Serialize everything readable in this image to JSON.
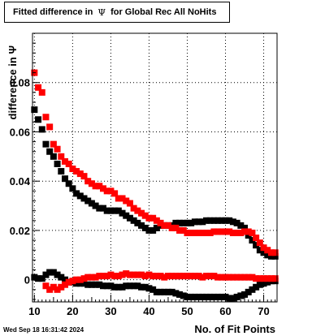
{
  "title": {
    "prefix": "Fitted difference in",
    "symbol": "Ψ",
    "suffix": "for Global Rec All NoHits"
  },
  "timestamp": "Wed Sep 18 16:31:42 2024",
  "chart_data": {
    "type": "scatter",
    "xlabel": "No. of Fit Points",
    "ylabel": "difference in  Ψ",
    "xlim": [
      9.5,
      73.5
    ],
    "ylim": [
      -0.009,
      0.1
    ],
    "xticks": [
      10,
      20,
      30,
      40,
      50,
      60,
      70
    ],
    "yticks": [
      0,
      0.02,
      0.04,
      0.06,
      0.08
    ],
    "ytick_labels": [
      "0",
      "0.02",
      "0.04",
      "0.06",
      "0.08"
    ],
    "grid": true,
    "colors": {
      "black": "#000000",
      "red": "#ff0000"
    },
    "series": [
      {
        "color": "#000000",
        "x": [
          10,
          11,
          12,
          13,
          14,
          15,
          16,
          17,
          18,
          19,
          20,
          21,
          22,
          23,
          24,
          25,
          26,
          27,
          28,
          29,
          30,
          31,
          32,
          33,
          34,
          35,
          36,
          37,
          38,
          39,
          40,
          41,
          42,
          43,
          44,
          45,
          46,
          47,
          48,
          49,
          50,
          51,
          52,
          53,
          54,
          55,
          56,
          57,
          58,
          59,
          60,
          61,
          62,
          63,
          64,
          65,
          66,
          67,
          68,
          69,
          70,
          71,
          72,
          73
        ],
        "y": [
          0.069,
          0.065,
          0.061,
          0.055,
          0.052,
          0.05,
          0.047,
          0.044,
          0.041,
          0.039,
          0.037,
          0.035,
          0.034,
          0.033,
          0.032,
          0.031,
          0.03,
          0.029,
          0.029,
          0.028,
          0.028,
          0.028,
          0.028,
          0.027,
          0.026,
          0.025,
          0.024,
          0.023,
          0.022,
          0.021,
          0.02,
          0.02,
          0.021,
          0.022,
          0.022,
          0.022,
          0.022,
          0.023,
          0.023,
          0.023,
          0.023,
          0.023,
          0.0235,
          0.0235,
          0.0235,
          0.024,
          0.024,
          0.024,
          0.024,
          0.024,
          0.024,
          0.024,
          0.0235,
          0.023,
          0.022,
          0.021,
          0.018,
          0.016,
          0.014,
          0.012,
          0.011,
          0.01,
          0.0095,
          0.0095
        ]
      },
      {
        "color": "#ff0000",
        "x": [
          10,
          11,
          12,
          13,
          14,
          15,
          16,
          17,
          18,
          19,
          20,
          21,
          22,
          23,
          24,
          25,
          26,
          27,
          28,
          29,
          30,
          31,
          32,
          33,
          34,
          35,
          36,
          37,
          38,
          39,
          40,
          41,
          42,
          43,
          44,
          45,
          46,
          47,
          48,
          49,
          50,
          51,
          52,
          53,
          54,
          55,
          56,
          57,
          58,
          59,
          60,
          61,
          62,
          63,
          64,
          65,
          66,
          67,
          68,
          69,
          70,
          71,
          72,
          73
        ],
        "y": [
          0.084,
          0.078,
          0.076,
          0.066,
          0.062,
          0.055,
          0.053,
          0.05,
          0.048,
          0.047,
          0.045,
          0.044,
          0.043,
          0.042,
          0.04,
          0.039,
          0.038,
          0.038,
          0.037,
          0.036,
          0.036,
          0.035,
          0.033,
          0.033,
          0.032,
          0.031,
          0.029,
          0.028,
          0.027,
          0.026,
          0.025,
          0.025,
          0.024,
          0.023,
          0.022,
          0.022,
          0.021,
          0.021,
          0.02,
          0.02,
          0.019,
          0.019,
          0.019,
          0.019,
          0.019,
          0.019,
          0.019,
          0.0195,
          0.0195,
          0.0195,
          0.0195,
          0.0195,
          0.019,
          0.019,
          0.019,
          0.0195,
          0.0195,
          0.019,
          0.017,
          0.015,
          0.013,
          0.012,
          0.011,
          0.011
        ]
      },
      {
        "color": "#000000",
        "x": [
          10,
          11,
          12,
          13,
          14,
          15,
          16,
          17,
          18,
          19,
          20,
          21,
          22,
          23,
          24,
          25,
          26,
          27,
          28,
          29,
          30,
          31,
          32,
          33,
          34,
          35,
          36,
          37,
          38,
          39,
          40,
          41,
          42,
          43,
          44,
          45,
          46,
          47,
          48,
          49,
          50,
          51,
          52,
          53,
          54,
          55,
          56,
          57,
          58,
          59,
          60,
          61,
          62,
          63,
          64,
          65,
          66,
          67,
          68,
          69,
          70,
          71,
          72,
          73
        ],
        "y": [
          0.001,
          0.0005,
          0.0005,
          0.002,
          0.003,
          0.003,
          0.002,
          0.001,
          0,
          -0.001,
          -0.001,
          -0.0015,
          -0.0015,
          -0.0015,
          -0.002,
          -0.002,
          -0.002,
          -0.002,
          -0.0025,
          -0.0025,
          -0.0025,
          -0.003,
          -0.003,
          -0.003,
          -0.0025,
          -0.0025,
          -0.0025,
          -0.0025,
          -0.003,
          -0.003,
          -0.0035,
          -0.004,
          -0.005,
          -0.005,
          -0.005,
          -0.005,
          -0.005,
          -0.0055,
          -0.006,
          -0.0065,
          -0.007,
          -0.007,
          -0.007,
          -0.007,
          -0.007,
          -0.007,
          -0.007,
          -0.007,
          -0.007,
          -0.007,
          -0.007,
          -0.0075,
          -0.0075,
          -0.007,
          -0.0065,
          -0.006,
          -0.005,
          -0.004,
          -0.003,
          -0.002,
          -0.0015,
          -0.001,
          -0.0005,
          -0.0005
        ]
      },
      {
        "color": "#ff0000",
        "x": [
          13,
          14,
          15,
          16,
          17,
          18,
          19,
          20,
          21,
          22,
          23,
          24,
          25,
          26,
          27,
          28,
          29,
          30,
          31,
          32,
          33,
          34,
          35,
          36,
          37,
          38,
          39,
          40,
          41,
          42,
          43,
          44,
          45,
          46,
          47,
          48,
          49,
          50,
          51,
          52,
          53,
          54,
          55,
          56,
          57,
          58,
          59,
          60,
          61,
          62,
          63,
          64,
          65,
          66,
          67,
          68,
          69,
          70,
          71,
          72,
          73
        ],
        "y": [
          -0.0025,
          -0.004,
          -0.003,
          -0.004,
          -0.003,
          -0.002,
          -0.001,
          -0.0005,
          0,
          0,
          0.0005,
          0.001,
          0.001,
          0.001,
          0.0015,
          0.0015,
          0.0015,
          0.002,
          0.0015,
          0.0015,
          0.002,
          0.0025,
          0.002,
          0.002,
          0.002,
          0.002,
          0.0015,
          0.002,
          0.0015,
          0.0015,
          0.0015,
          0.001,
          0.0015,
          0.0015,
          0.0015,
          0.0015,
          0.0015,
          0.0015,
          0.0015,
          0.0015,
          0.0015,
          0.001,
          0.0015,
          0.0015,
          0.0015,
          0.001,
          0.001,
          0.001,
          0.001,
          0.001,
          0.001,
          0.001,
          0.001,
          0.001,
          0.001,
          0.0005,
          0.0005,
          0.0005,
          0.0005,
          0.0005,
          0.0005
        ]
      }
    ]
  }
}
